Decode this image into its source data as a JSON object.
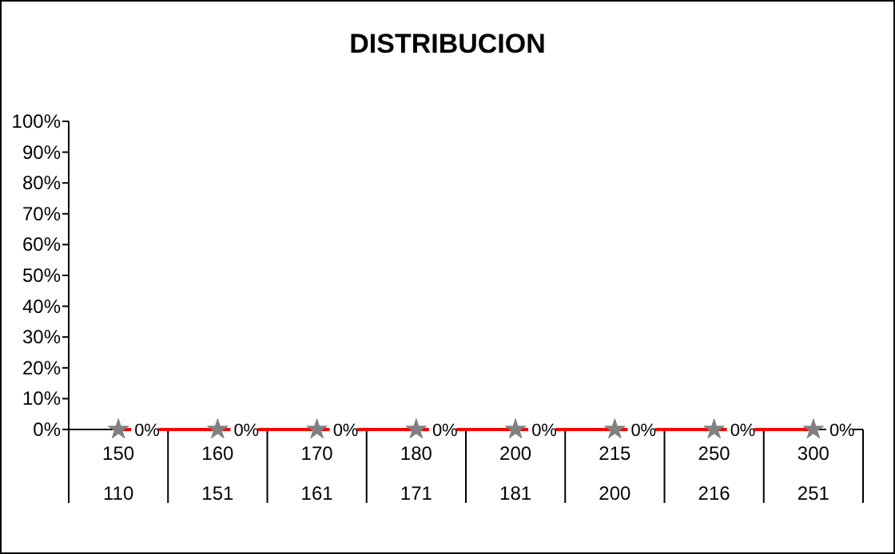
{
  "chart_data": {
    "type": "line",
    "title": "DISTRIBUCION",
    "categories": [
      "150\n110",
      "160\n151",
      "170\n161",
      "180\n171",
      "200\n181",
      "215\n200",
      "250\n216",
      "300\n251"
    ],
    "series": [
      {
        "color": "#ff0000",
        "values": [
          0,
          0,
          0,
          0,
          0,
          0,
          0,
          0
        ],
        "value_labels": [
          "0%",
          "0%",
          "0%",
          "0%",
          "0%",
          "0%",
          "0%",
          "0%"
        ]
      }
    ],
    "ylim": [
      0,
      100
    ],
    "yticks": [
      {
        "value": 0,
        "label": "0%"
      },
      {
        "value": 10,
        "label": "10%"
      },
      {
        "value": 20,
        "label": "20%"
      },
      {
        "value": 30,
        "label": "30%"
      },
      {
        "value": 40,
        "label": "40%"
      },
      {
        "value": 50,
        "label": "50%"
      },
      {
        "value": 60,
        "label": "60%"
      },
      {
        "value": 70,
        "label": "70%"
      },
      {
        "value": 80,
        "label": "80%"
      },
      {
        "value": 90,
        "label": "90%"
      },
      {
        "value": 100,
        "label": "100%"
      }
    ],
    "marker": "star",
    "line_style": "solid",
    "grid": false
  }
}
